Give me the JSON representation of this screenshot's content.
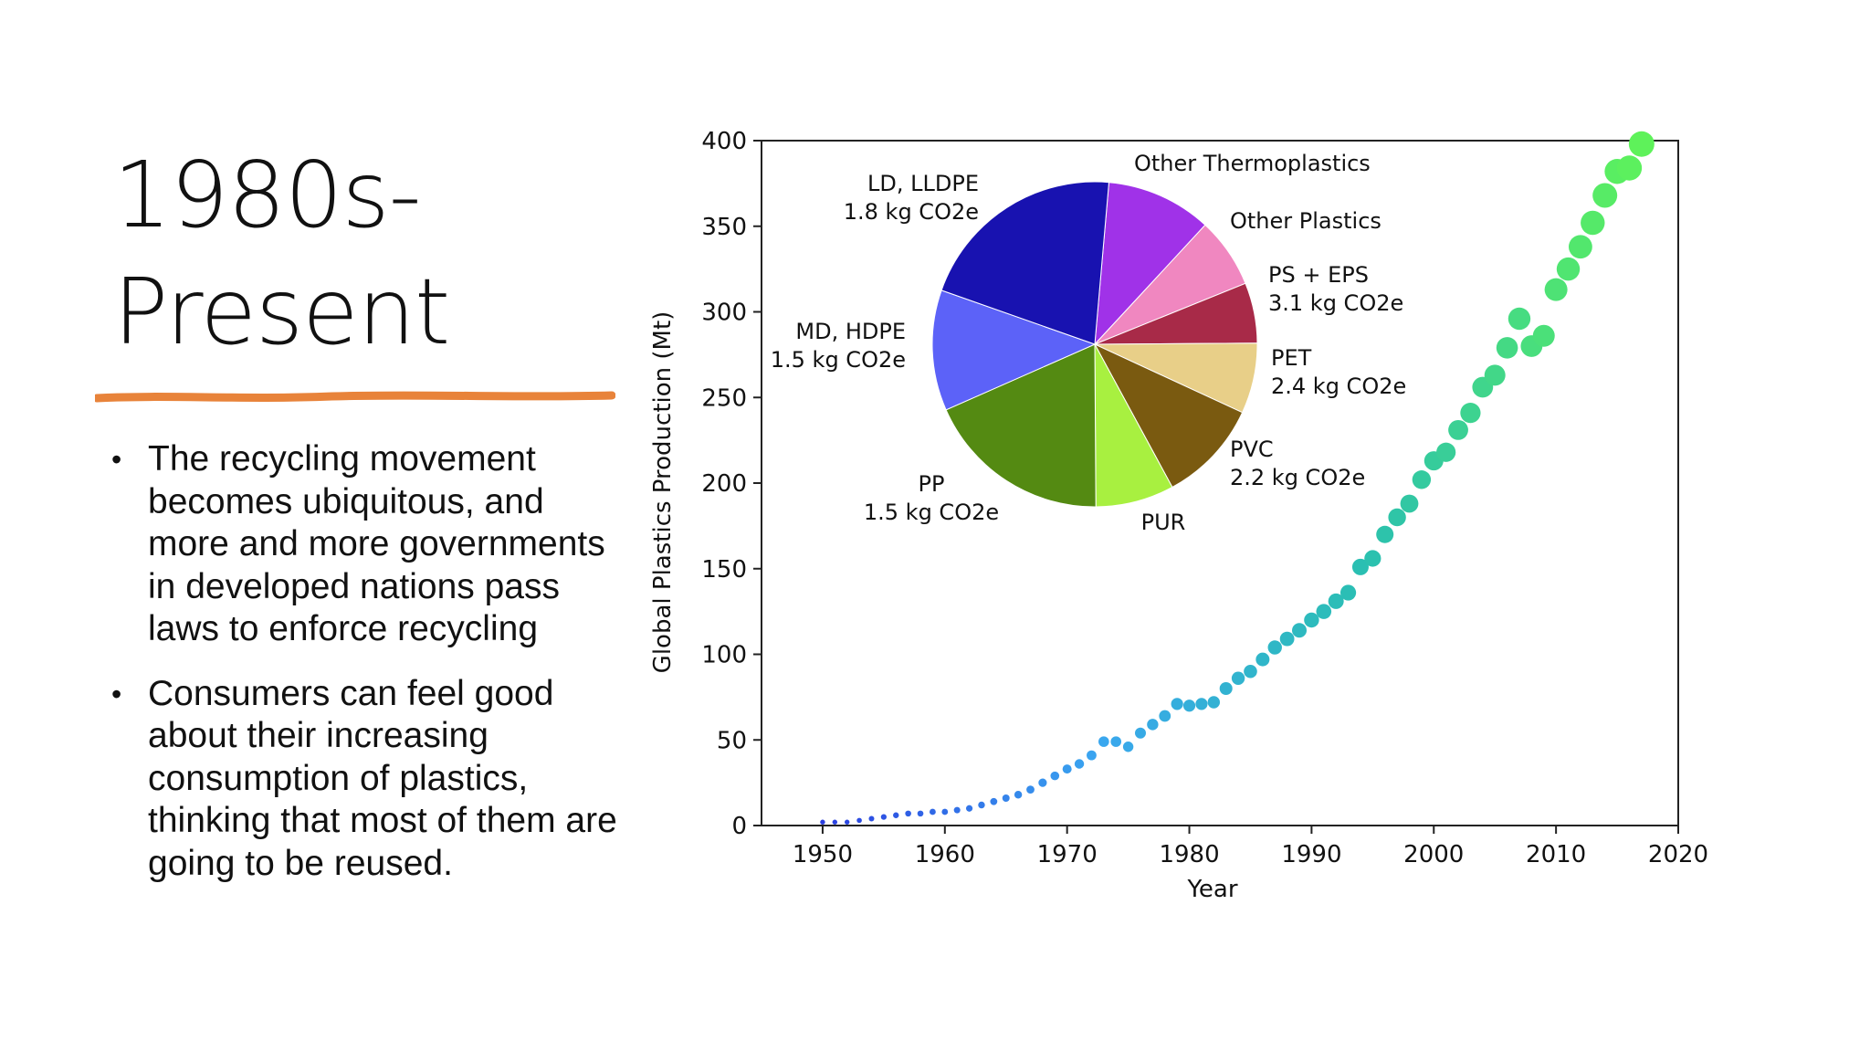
{
  "slide": {
    "title_lines": [
      "1980s-",
      "Present"
    ],
    "accent_color": "#e8833a",
    "bullets": [
      "The recycling movement becomes ubiquitous, and more and more governments in developed nations pass laws to enforce recycling",
      "Consumers can feel good about their increasing consumption of plastics, thinking that most of them are going to be reused."
    ]
  },
  "chart_data": [
    {
      "type": "scatter",
      "xlabel": "Year",
      "ylabel": "Global Plastics Production (Mt)",
      "xlim": [
        1945,
        2020
      ],
      "ylim": [
        0,
        400
      ],
      "xticks": [
        "1950",
        "1960",
        "1970",
        "1980",
        "1990",
        "2000",
        "2010",
        "2020"
      ],
      "yticks": [
        "0",
        "50",
        "100",
        "150",
        "200",
        "250",
        "300",
        "350",
        "400"
      ],
      "grid": false,
      "color_gradient": [
        "#2a3ee0",
        "#3aa6f0",
        "#2ac0b0",
        "#5ef25a"
      ],
      "x": [
        1950,
        1951,
        1952,
        1953,
        1954,
        1955,
        1956,
        1957,
        1958,
        1959,
        1960,
        1961,
        1962,
        1963,
        1964,
        1965,
        1966,
        1967,
        1968,
        1969,
        1970,
        1971,
        1972,
        1973,
        1974,
        1975,
        1976,
        1977,
        1978,
        1979,
        1980,
        1981,
        1982,
        1983,
        1984,
        1985,
        1986,
        1987,
        1988,
        1989,
        1990,
        1991,
        1992,
        1993,
        1994,
        1995,
        1996,
        1997,
        1998,
        1999,
        2000,
        2001,
        2002,
        2003,
        2004,
        2005,
        2006,
        2007,
        2008,
        2009,
        2010,
        2011,
        2012,
        2013,
        2014,
        2015,
        2016,
        2017
      ],
      "y": [
        2,
        2,
        2,
        3,
        4,
        5,
        6,
        7,
        7,
        8,
        8,
        9,
        10,
        12,
        14,
        16,
        18,
        21,
        25,
        29,
        33,
        36,
        41,
        49,
        49,
        46,
        54,
        59,
        64,
        71,
        70,
        71,
        72,
        80,
        86,
        90,
        97,
        104,
        109,
        114,
        120,
        125,
        131,
        136,
        151,
        156,
        170,
        180,
        188,
        202,
        213,
        218,
        231,
        241,
        256,
        263,
        279,
        296,
        280,
        286,
        313,
        325,
        338,
        352,
        368,
        382,
        384,
        398
      ]
    },
    {
      "type": "pie",
      "slices": [
        {
          "label": "Other Thermoplastics",
          "value": 10.5,
          "color": "#a032e8"
        },
        {
          "label": "Other Plastics",
          "value": 7,
          "color": "#f087c0"
        },
        {
          "label": "PS + EPS",
          "value": 6,
          "sublabel": "3.1 kg CO2e",
          "color": "#a82a48"
        },
        {
          "label": "PET",
          "value": 7,
          "sublabel": "2.4 kg CO2e",
          "color": "#e8cf88"
        },
        {
          "label": "PVC",
          "value": 10.2,
          "sublabel": "2.2 kg CO2e",
          "color": "#7a5a10"
        },
        {
          "label": "PUR",
          "value": 7.8,
          "color": "#a8f040"
        },
        {
          "label": "PP",
          "value": 18.5,
          "sublabel": "1.5 kg CO2e",
          "color": "#548a12"
        },
        {
          "label": "MD, HDPE",
          "value": 12,
          "sublabel": "1.5 kg CO2e",
          "color": "#5c62f8"
        },
        {
          "label": "LD, LLDPE",
          "value": 21,
          "sublabel": "1.8 kg CO2e",
          "color": "#1812b0"
        }
      ]
    }
  ]
}
